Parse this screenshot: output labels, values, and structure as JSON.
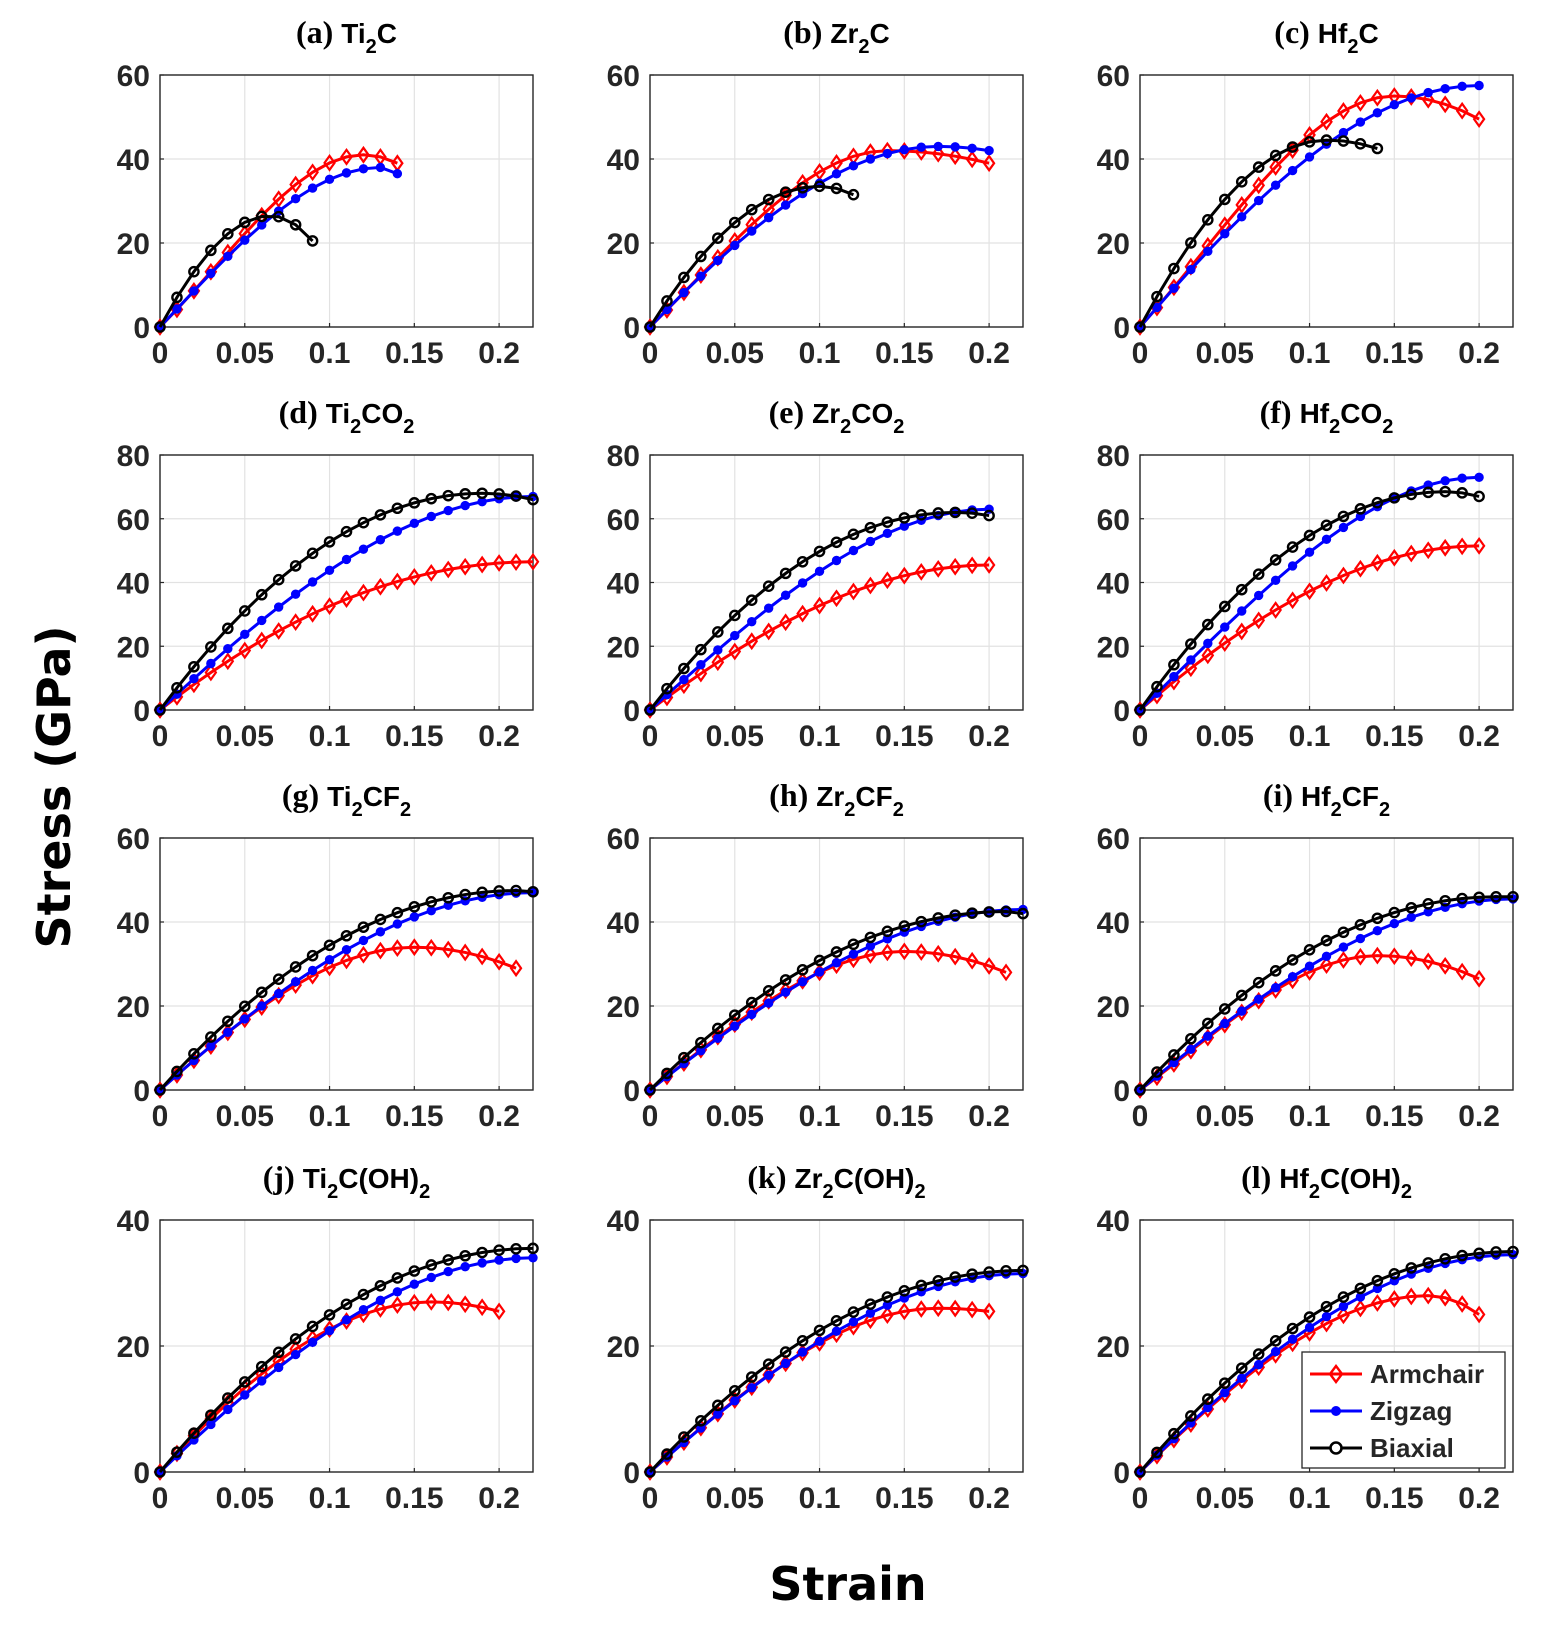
{
  "figure": {
    "xlabel": "Strain",
    "ylabel": "Stress (GPa)"
  },
  "legend": {
    "placement": "bottom-right of panel (l)",
    "entries": [
      "Armchair",
      "Zigzag",
      "Biaxial"
    ]
  },
  "colors": {
    "armchair": "#ff0000",
    "zigzag": "#0000ff",
    "biaxial": "#000000",
    "grid": "#e2e2e2",
    "axis": "#262626"
  },
  "chart_data": [
    {
      "type": "line",
      "label": "(a)",
      "title": [
        [
          "Ti",
          ""
        ],
        [
          "2",
          "sub"
        ],
        [
          "C",
          ""
        ]
      ],
      "xlim": [
        0,
        0.22
      ],
      "ylim": [
        0,
        60
      ],
      "xticks": [
        "0",
        "0.05",
        "0.1",
        "0.15",
        "0.2"
      ],
      "yticks": [
        "0",
        "20",
        "40",
        "60"
      ],
      "series": [
        {
          "name": "Armchair",
          "x_step": 0.01,
          "peak_x": 0.12,
          "peak_y": 41,
          "end_x": 0.14,
          "end_y": 39,
          "init_slope": 400
        },
        {
          "name": "Zigzag",
          "x_step": 0.01,
          "peak_x": 0.13,
          "peak_y": 38,
          "end_x": 0.14,
          "end_y": 36.5,
          "init_slope": 430
        },
        {
          "name": "Biaxial",
          "x_step": 0.01,
          "peak_x": 0.065,
          "peak_y": 26.5,
          "end_x": 0.09,
          "end_y": 20.5,
          "init_slope": 750
        }
      ]
    },
    {
      "type": "line",
      "label": "(b)",
      "title": [
        [
          "Zr",
          ""
        ],
        [
          "2",
          "sub"
        ],
        [
          "C",
          ""
        ]
      ],
      "xlim": [
        0,
        0.22
      ],
      "ylim": [
        0,
        60
      ],
      "xticks": [
        "0",
        "0.05",
        "0.1",
        "0.15",
        "0.2"
      ],
      "yticks": [
        "0",
        "20",
        "40",
        "60"
      ],
      "series": [
        {
          "name": "Armchair",
          "x_step": 0.01,
          "peak_x": 0.14,
          "peak_y": 42,
          "end_x": 0.2,
          "end_y": 39,
          "init_slope": 400
        },
        {
          "name": "Zigzag",
          "x_step": 0.01,
          "peak_x": 0.17,
          "peak_y": 43,
          "end_x": 0.2,
          "end_y": 42,
          "init_slope": 420
        },
        {
          "name": "Biaxial",
          "x_step": 0.01,
          "peak_x": 0.1,
          "peak_y": 33.5,
          "end_x": 0.12,
          "end_y": 31.5,
          "init_slope": 650
        }
      ]
    },
    {
      "type": "line",
      "label": "(c)",
      "title": [
        [
          "Hf",
          ""
        ],
        [
          "2",
          "sub"
        ],
        [
          "C",
          ""
        ]
      ],
      "xlim": [
        0,
        0.22
      ],
      "ylim": [
        0,
        60
      ],
      "xticks": [
        "0",
        "0.05",
        "0.1",
        "0.15",
        "0.2"
      ],
      "yticks": [
        "0",
        "20",
        "40",
        "60"
      ],
      "series": [
        {
          "name": "Armchair",
          "x_step": 0.01,
          "peak_x": 0.15,
          "peak_y": 55,
          "end_x": 0.2,
          "end_y": 49.5,
          "init_slope": 450
        },
        {
          "name": "Zigzag",
          "x_step": 0.01,
          "peak_x": 0.2,
          "peak_y": 57.5,
          "end_x": 0.2,
          "end_y": 57.5,
          "init_slope": 470
        },
        {
          "name": "Biaxial",
          "x_step": 0.01,
          "peak_x": 0.11,
          "peak_y": 44.5,
          "end_x": 0.14,
          "end_y": 42.5,
          "init_slope": 750
        }
      ]
    },
    {
      "type": "line",
      "label": "(d)",
      "title": [
        [
          "Ti",
          ""
        ],
        [
          "2",
          "sub"
        ],
        [
          "CO",
          ""
        ],
        [
          "2",
          "sub"
        ]
      ],
      "xlim": [
        0,
        0.22
      ],
      "ylim": [
        0,
        80
      ],
      "xticks": [
        "0",
        "0.05",
        "0.1",
        "0.15",
        "0.2"
      ],
      "yticks": [
        "0",
        "20",
        "40",
        "60",
        "80"
      ],
      "series": [
        {
          "name": "Armchair",
          "x_step": 0.01,
          "peak_x": 0.22,
          "peak_y": 46.5,
          "end_x": 0.22,
          "end_y": 46.5,
          "init_slope": 420
        },
        {
          "name": "Zigzag",
          "x_step": 0.01,
          "peak_x": 0.22,
          "peak_y": 67,
          "end_x": 0.22,
          "end_y": 67,
          "init_slope": 500
        },
        {
          "name": "Biaxial",
          "x_step": 0.01,
          "peak_x": 0.19,
          "peak_y": 68,
          "end_x": 0.22,
          "end_y": 66,
          "init_slope": 750
        }
      ]
    },
    {
      "type": "line",
      "label": "(e)",
      "title": [
        [
          "Zr",
          ""
        ],
        [
          "2",
          "sub"
        ],
        [
          "CO",
          ""
        ],
        [
          "2",
          "sub"
        ]
      ],
      "xlim": [
        0,
        0.22
      ],
      "ylim": [
        0,
        80
      ],
      "xticks": [
        "0",
        "0.05",
        "0.1",
        "0.15",
        "0.2"
      ],
      "yticks": [
        "0",
        "20",
        "40",
        "60",
        "80"
      ],
      "series": [
        {
          "name": "Armchair",
          "x_step": 0.01,
          "peak_x": 0.2,
          "peak_y": 45.5,
          "end_x": 0.2,
          "end_y": 45.5,
          "init_slope": 400
        },
        {
          "name": "Zigzag",
          "x_step": 0.01,
          "peak_x": 0.2,
          "peak_y": 63,
          "end_x": 0.2,
          "end_y": 63,
          "init_slope": 480
        },
        {
          "name": "Biaxial",
          "x_step": 0.01,
          "peak_x": 0.18,
          "peak_y": 62,
          "end_x": 0.2,
          "end_y": 61,
          "init_slope": 700
        }
      ]
    },
    {
      "type": "line",
      "label": "(f)",
      "title": [
        [
          "Hf",
          ""
        ],
        [
          "2",
          "sub"
        ],
        [
          "CO",
          ""
        ],
        [
          "2",
          "sub"
        ]
      ],
      "xlim": [
        0,
        0.22
      ],
      "ylim": [
        0,
        80
      ],
      "xticks": [
        "0",
        "0.05",
        "0.1",
        "0.15",
        "0.2"
      ],
      "yticks": [
        "0",
        "20",
        "40",
        "60",
        "80"
      ],
      "series": [
        {
          "name": "Armchair",
          "x_step": 0.01,
          "peak_x": 0.2,
          "peak_y": 51.5,
          "end_x": 0.2,
          "end_y": 51.5,
          "init_slope": 460
        },
        {
          "name": "Zigzag",
          "x_step": 0.01,
          "peak_x": 0.2,
          "peak_y": 73,
          "end_x": 0.2,
          "end_y": 73,
          "init_slope": 520
        },
        {
          "name": "Biaxial",
          "x_step": 0.01,
          "peak_x": 0.18,
          "peak_y": 68.5,
          "end_x": 0.2,
          "end_y": 67,
          "init_slope": 750
        }
      ]
    },
    {
      "type": "line",
      "label": "(g)",
      "title": [
        [
          "Ti",
          ""
        ],
        [
          "2",
          "sub"
        ],
        [
          "CF",
          ""
        ],
        [
          "2",
          "sub"
        ]
      ],
      "xlim": [
        0,
        0.22
      ],
      "ylim": [
        0,
        60
      ],
      "xticks": [
        "0",
        "0.05",
        "0.1",
        "0.15",
        "0.2"
      ],
      "yticks": [
        "0",
        "20",
        "40",
        "60"
      ],
      "series": [
        {
          "name": "Armchair",
          "x_step": 0.01,
          "peak_x": 0.15,
          "peak_y": 34,
          "end_x": 0.21,
          "end_y": 29,
          "init_slope": 360
        },
        {
          "name": "Zigzag",
          "x_step": 0.01,
          "peak_x": 0.22,
          "peak_y": 47,
          "end_x": 0.22,
          "end_y": 47,
          "init_slope": 360
        },
        {
          "name": "Biaxial",
          "x_step": 0.01,
          "peak_x": 0.21,
          "peak_y": 47.5,
          "end_x": 0.22,
          "end_y": 47.2,
          "init_slope": 550
        }
      ]
    },
    {
      "type": "line",
      "label": "(h)",
      "title": [
        [
          "Zr",
          ""
        ],
        [
          "2",
          "sub"
        ],
        [
          "CF",
          ""
        ],
        [
          "2",
          "sub"
        ]
      ],
      "xlim": [
        0,
        0.22
      ],
      "ylim": [
        0,
        60
      ],
      "xticks": [
        "0",
        "0.05",
        "0.1",
        "0.15",
        "0.2"
      ],
      "yticks": [
        "0",
        "20",
        "40",
        "60"
      ],
      "series": [
        {
          "name": "Armchair",
          "x_step": 0.01,
          "peak_x": 0.15,
          "peak_y": 33,
          "end_x": 0.21,
          "end_y": 28,
          "init_slope": 320
        },
        {
          "name": "Zigzag",
          "x_step": 0.01,
          "peak_x": 0.22,
          "peak_y": 43,
          "end_x": 0.22,
          "end_y": 43,
          "init_slope": 320
        },
        {
          "name": "Biaxial",
          "x_step": 0.01,
          "peak_x": 0.21,
          "peak_y": 42.5,
          "end_x": 0.22,
          "end_y": 42,
          "init_slope": 500
        }
      ]
    },
    {
      "type": "line",
      "label": "(i)",
      "title": [
        [
          "Hf",
          ""
        ],
        [
          "2",
          "sub"
        ],
        [
          "CF",
          ""
        ],
        [
          "2",
          "sub"
        ]
      ],
      "xlim": [
        0,
        0.22
      ],
      "ylim": [
        0,
        60
      ],
      "xticks": [
        "0",
        "0.05",
        "0.1",
        "0.15",
        "0.2"
      ],
      "yticks": [
        "0",
        "20",
        "40",
        "60"
      ],
      "series": [
        {
          "name": "Armchair",
          "x_step": 0.01,
          "peak_x": 0.14,
          "peak_y": 32,
          "end_x": 0.2,
          "end_y": 26.5,
          "init_slope": 300
        },
        {
          "name": "Zigzag",
          "x_step": 0.01,
          "peak_x": 0.22,
          "peak_y": 45.5,
          "end_x": 0.22,
          "end_y": 45.5,
          "init_slope": 330
        },
        {
          "name": "Biaxial",
          "x_step": 0.01,
          "peak_x": 0.21,
          "peak_y": 46,
          "end_x": 0.22,
          "end_y": 46,
          "init_slope": 500
        }
      ]
    },
    {
      "type": "line",
      "label": "(j)",
      "title": [
        [
          "Ti",
          ""
        ],
        [
          "2",
          "sub"
        ],
        [
          "C(OH)",
          ""
        ],
        [
          "2",
          "sub"
        ]
      ],
      "xlim": [
        0,
        0.22
      ],
      "ylim": [
        0,
        40
      ],
      "xticks": [
        "0",
        "0.05",
        "0.1",
        "0.15",
        "0.2"
      ],
      "yticks": [
        "0",
        "20",
        "40"
      ],
      "series": [
        {
          "name": "Armchair",
          "x_step": 0.01,
          "peak_x": 0.16,
          "peak_y": 27,
          "end_x": 0.2,
          "end_y": 25.5,
          "init_slope": 300
        },
        {
          "name": "Zigzag",
          "x_step": 0.01,
          "peak_x": 0.22,
          "peak_y": 34,
          "end_x": 0.22,
          "end_y": 34,
          "init_slope": 260
        },
        {
          "name": "Biaxial",
          "x_step": 0.01,
          "peak_x": 0.22,
          "peak_y": 35.5,
          "end_x": 0.22,
          "end_y": 35.5,
          "init_slope": 330
        }
      ]
    },
    {
      "type": "line",
      "label": "(k)",
      "title": [
        [
          "Zr",
          ""
        ],
        [
          "2",
          "sub"
        ],
        [
          "C(OH)",
          ""
        ],
        [
          "2",
          "sub"
        ]
      ],
      "xlim": [
        0,
        0.22
      ],
      "ylim": [
        0,
        40
      ],
      "xticks": [
        "0",
        "0.05",
        "0.1",
        "0.15",
        "0.2"
      ],
      "yticks": [
        "0",
        "20",
        "40"
      ],
      "series": [
        {
          "name": "Armchair",
          "x_step": 0.01,
          "peak_x": 0.17,
          "peak_y": 26,
          "end_x": 0.2,
          "end_y": 25.5,
          "init_slope": 240
        },
        {
          "name": "Zigzag",
          "x_step": 0.01,
          "peak_x": 0.22,
          "peak_y": 31.5,
          "end_x": 0.22,
          "end_y": 31.5,
          "init_slope": 240
        },
        {
          "name": "Biaxial",
          "x_step": 0.01,
          "peak_x": 0.22,
          "peak_y": 32,
          "end_x": 0.22,
          "end_y": 32,
          "init_slope": 300
        }
      ]
    },
    {
      "type": "line",
      "label": "(l)",
      "title": [
        [
          "Hf",
          ""
        ],
        [
          "2",
          "sub"
        ],
        [
          "C(OH)",
          ""
        ],
        [
          "2",
          "sub"
        ]
      ],
      "xlim": [
        0,
        0.22
      ],
      "ylim": [
        0,
        40
      ],
      "xticks": [
        "0",
        "0.05",
        "0.1",
        "0.15",
        "0.2"
      ],
      "yticks": [
        "0",
        "20",
        "40"
      ],
      "series": [
        {
          "name": "Armchair",
          "x_step": 0.01,
          "peak_x": 0.17,
          "peak_y": 28,
          "end_x": 0.2,
          "end_y": 25,
          "init_slope": 260
        },
        {
          "name": "Zigzag",
          "x_step": 0.01,
          "peak_x": 0.22,
          "peak_y": 34.5,
          "end_x": 0.22,
          "end_y": 34.5,
          "init_slope": 270
        },
        {
          "name": "Biaxial",
          "x_step": 0.01,
          "peak_x": 0.22,
          "peak_y": 35,
          "end_x": 0.22,
          "end_y": 35,
          "init_slope": 340
        }
      ]
    }
  ]
}
